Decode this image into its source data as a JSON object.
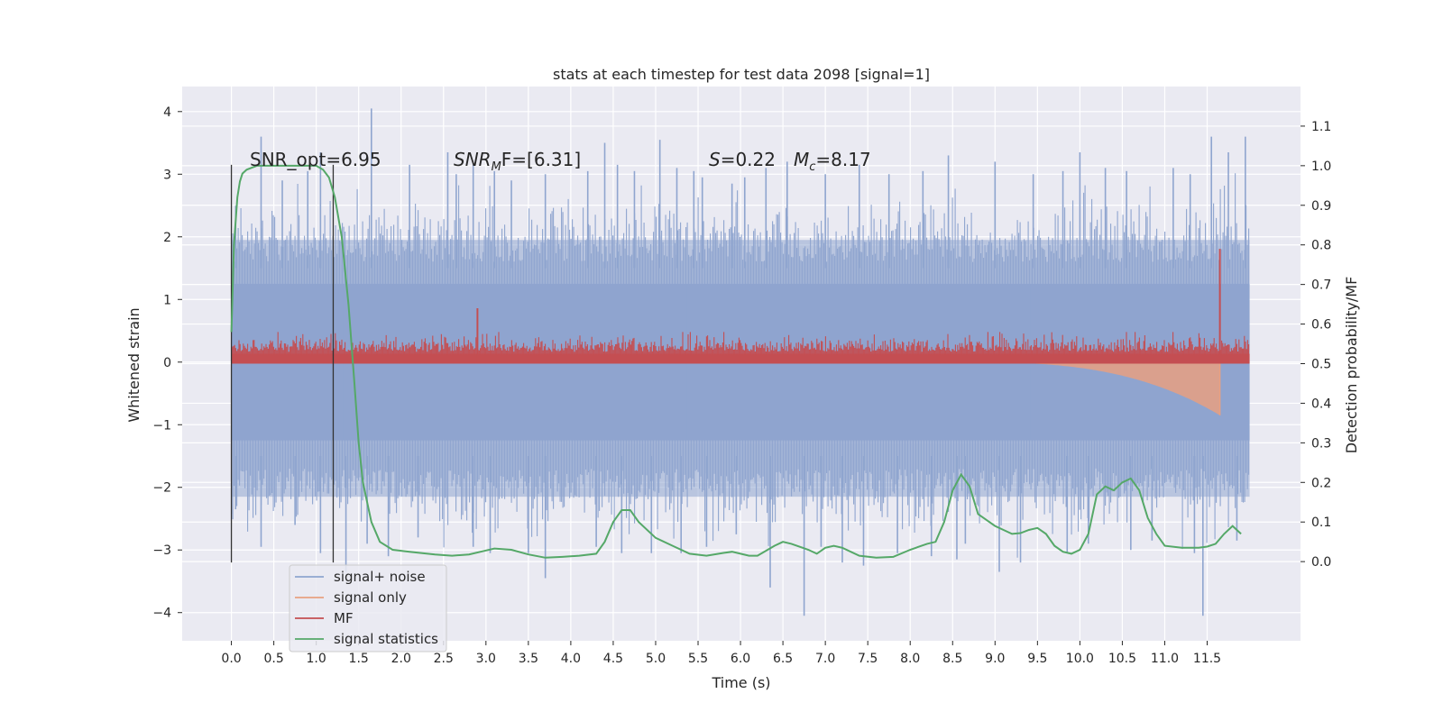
{
  "chart_data": {
    "type": "line",
    "title": "stats at each timestep for test data 2098 [signal=1]",
    "xlabel": "Time (s)",
    "ylabel_left": "Whitened strain",
    "ylabel_right": "Detection probability/MF",
    "xlim": [
      -0.58,
      12.6
    ],
    "ylim_left": [
      -4.45,
      4.4
    ],
    "ylim_right": [
      -0.2,
      1.2
    ],
    "x_ticks": [
      0.0,
      0.5,
      1.0,
      1.5,
      2.0,
      2.5,
      3.0,
      3.5,
      4.0,
      4.5,
      5.0,
      5.5,
      6.0,
      6.5,
      7.0,
      7.5,
      8.0,
      8.5,
      9.0,
      9.5,
      10.0,
      10.5,
      11.0,
      11.5
    ],
    "x_tick_labels": [
      "0.0",
      "0.5",
      "1.0",
      "1.5",
      "2.0",
      "2.5",
      "3.0",
      "3.5",
      "4.0",
      "4.5",
      "5.0",
      "5.5",
      "6.0",
      "6.5",
      "7.0",
      "7.5",
      "8.0",
      "8.5",
      "9.0",
      "9.5",
      "10.0",
      "10.5",
      "11.0",
      "11.5"
    ],
    "y_left_ticks": [
      4,
      3,
      2,
      1,
      0,
      -1,
      -2,
      -3,
      -4
    ],
    "y_left_tick_labels": [
      "4",
      "3",
      "2",
      "1",
      "0",
      "−1",
      "−2",
      "−3",
      "−4"
    ],
    "y_right_ticks": [
      1.1,
      1.0,
      0.9,
      0.8,
      0.7,
      0.6,
      0.5,
      0.4,
      0.3,
      0.2,
      0.1,
      0.0
    ],
    "y_right_tick_labels": [
      "1.1",
      "1.0",
      "0.9",
      "0.8",
      "0.7",
      "0.6",
      "0.5",
      "0.4",
      "0.3",
      "0.2",
      "0.1",
      "0.0"
    ],
    "grid": true,
    "legend_position": "lower-left",
    "annotations": {
      "snr_opt": "SNR_opt=6.95",
      "snr_mf_label": "SNR",
      "snr_mf_sub": "M",
      "snr_mf_rest": "F=[6.31]",
      "s_label": "S",
      "s_value": "=0.22",
      "mc_label": "M",
      "mc_sub": "c",
      "mc_value": "=8.17"
    },
    "vertical_markers_x": [
      0.0,
      1.2
    ],
    "series": [
      {
        "name": "signal+ noise",
        "color": "#8fa5cf",
        "axis": "left",
        "x_range": [
          0.0,
          12.0
        ],
        "band_1sigma": [
          -1.25,
          1.25
        ],
        "band_2sigma": [
          -2.15,
          1.95
        ],
        "peaks_up": [
          [
            0.05,
            2.3
          ],
          [
            0.35,
            3.6
          ],
          [
            0.6,
            2.9
          ],
          [
            0.9,
            3.05
          ],
          [
            1.05,
            3.35
          ],
          [
            1.65,
            4.05
          ],
          [
            2.1,
            3.15
          ],
          [
            2.55,
            3.35
          ],
          [
            2.65,
            3.0
          ],
          [
            2.85,
            3.15
          ],
          [
            3.1,
            3.05
          ],
          [
            3.3,
            2.9
          ],
          [
            3.7,
            3.0
          ],
          [
            4.2,
            3.05
          ],
          [
            4.4,
            3.5
          ],
          [
            4.55,
            3.15
          ],
          [
            4.75,
            3.05
          ],
          [
            5.05,
            3.55
          ],
          [
            5.25,
            3.1
          ],
          [
            5.45,
            3.05
          ],
          [
            5.55,
            2.95
          ],
          [
            5.9,
            2.85
          ],
          [
            6.05,
            2.95
          ],
          [
            6.3,
            3.1
          ],
          [
            6.55,
            3.2
          ],
          [
            7.0,
            3.0
          ],
          [
            7.4,
            3.15
          ],
          [
            7.75,
            3.0
          ],
          [
            8.15,
            3.05
          ],
          [
            8.45,
            3.3
          ],
          [
            9.0,
            3.2
          ],
          [
            9.45,
            3.0
          ],
          [
            9.8,
            3.05
          ],
          [
            10.0,
            3.35
          ],
          [
            10.3,
            3.1
          ],
          [
            10.55,
            3.05
          ],
          [
            11.1,
            3.1
          ],
          [
            11.3,
            3.0
          ],
          [
            11.55,
            3.6
          ],
          [
            11.75,
            3.35
          ],
          [
            11.95,
            3.6
          ]
        ],
        "peaks_down": [
          [
            0.05,
            -2.35
          ],
          [
            0.35,
            -2.95
          ],
          [
            0.75,
            -2.6
          ],
          [
            1.05,
            -3.05
          ],
          [
            1.35,
            -3.35
          ],
          [
            1.6,
            -2.9
          ],
          [
            1.85,
            -3.1
          ],
          [
            2.2,
            -2.8
          ],
          [
            2.85,
            -2.95
          ],
          [
            3.05,
            -3.05
          ],
          [
            3.5,
            -3.05
          ],
          [
            3.7,
            -3.45
          ],
          [
            4.3,
            -2.95
          ],
          [
            4.6,
            -3.05
          ],
          [
            4.95,
            -3.05
          ],
          [
            5.3,
            -3.05
          ],
          [
            5.6,
            -2.95
          ],
          [
            5.95,
            -2.75
          ],
          [
            6.35,
            -3.6
          ],
          [
            6.75,
            -4.05
          ],
          [
            6.95,
            -2.95
          ],
          [
            7.2,
            -3.2
          ],
          [
            7.45,
            -3.25
          ],
          [
            7.85,
            -3.05
          ],
          [
            8.25,
            -3.1
          ],
          [
            8.55,
            -3.15
          ],
          [
            8.65,
            -2.9
          ],
          [
            9.05,
            -3.35
          ],
          [
            9.3,
            -3.2
          ],
          [
            9.85,
            -3.05
          ],
          [
            10.1,
            -2.9
          ],
          [
            10.6,
            -3.0
          ],
          [
            10.85,
            -2.85
          ],
          [
            11.35,
            -3.05
          ],
          [
            11.45,
            -4.05
          ],
          [
            11.85,
            -2.85
          ]
        ]
      },
      {
        "name": "signal only",
        "color": "#e8a081",
        "axis": "left",
        "chirp_x_range": [
          8.5,
          11.65
        ],
        "chirp_amplitude_end": 0.85
      },
      {
        "name": "MF",
        "color": "#c44e52",
        "axis": "right",
        "x_range": [
          0.0,
          12.0
        ],
        "baseline": 0.5,
        "typical_max": 0.58,
        "peaks": [
          [
            2.9,
            0.64
          ],
          [
            11.65,
            0.79
          ]
        ]
      },
      {
        "name": "signal statistics",
        "color": "#55a868",
        "axis": "right",
        "x": [
          0.0,
          0.03,
          0.07,
          0.1,
          0.13,
          0.18,
          0.3,
          0.5,
          0.7,
          0.9,
          1.0,
          1.08,
          1.15,
          1.22,
          1.3,
          1.38,
          1.45,
          1.5,
          1.55,
          1.65,
          1.75,
          1.9,
          2.1,
          2.4,
          2.6,
          2.8,
          3.0,
          3.1,
          3.3,
          3.5,
          3.7,
          3.9,
          4.1,
          4.3,
          4.4,
          4.5,
          4.6,
          4.7,
          4.8,
          5.0,
          5.2,
          5.4,
          5.6,
          5.8,
          5.9,
          6.0,
          6.1,
          6.2,
          6.4,
          6.5,
          6.6,
          6.8,
          6.9,
          7.0,
          7.1,
          7.2,
          7.4,
          7.6,
          7.8,
          8.0,
          8.2,
          8.3,
          8.4,
          8.5,
          8.6,
          8.7,
          8.8,
          9.0,
          9.2,
          9.3,
          9.4,
          9.5,
          9.6,
          9.7,
          9.8,
          9.9,
          10.0,
          10.1,
          10.2,
          10.3,
          10.4,
          10.5,
          10.6,
          10.7,
          10.8,
          10.9,
          11.0,
          11.2,
          11.4,
          11.5,
          11.6,
          11.7,
          11.8,
          11.9
        ],
        "y": [
          0.58,
          0.8,
          0.92,
          0.96,
          0.98,
          0.99,
          1.0,
          1.0,
          1.0,
          1.0,
          1.0,
          0.99,
          0.97,
          0.92,
          0.82,
          0.65,
          0.45,
          0.3,
          0.2,
          0.1,
          0.05,
          0.03,
          0.025,
          0.018,
          0.015,
          0.018,
          0.028,
          0.033,
          0.03,
          0.018,
          0.01,
          0.012,
          0.015,
          0.02,
          0.05,
          0.1,
          0.13,
          0.13,
          0.1,
          0.06,
          0.04,
          0.02,
          0.015,
          0.022,
          0.025,
          0.02,
          0.015,
          0.015,
          0.04,
          0.05,
          0.045,
          0.03,
          0.02,
          0.035,
          0.04,
          0.035,
          0.015,
          0.01,
          0.012,
          0.03,
          0.045,
          0.05,
          0.1,
          0.18,
          0.22,
          0.19,
          0.12,
          0.09,
          0.07,
          0.072,
          0.08,
          0.085,
          0.07,
          0.04,
          0.025,
          0.02,
          0.03,
          0.07,
          0.17,
          0.19,
          0.18,
          0.2,
          0.21,
          0.18,
          0.11,
          0.07,
          0.04,
          0.035,
          0.035,
          0.038,
          0.045,
          0.07,
          0.09,
          0.07
        ]
      }
    ]
  }
}
